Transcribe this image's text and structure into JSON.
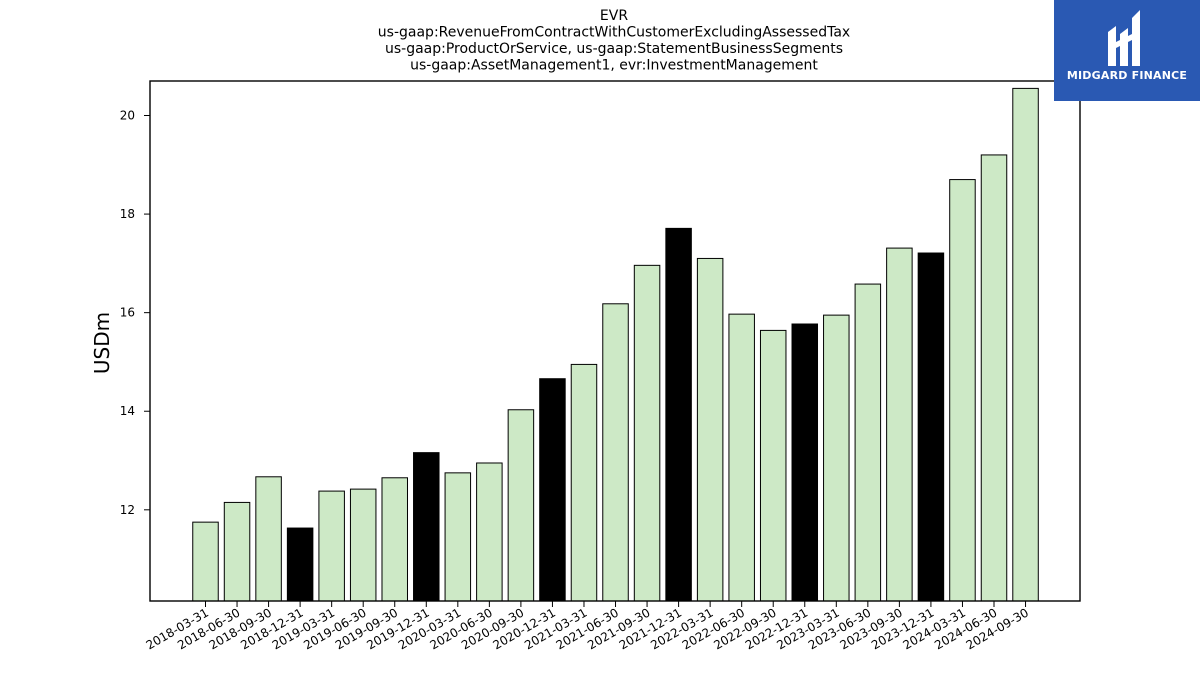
{
  "logo": {
    "text": "MIDGARD FINANCE",
    "background": "#2a59b3"
  },
  "chart_data": {
    "type": "bar",
    "title": [
      "EVR",
      "us-gaap:RevenueFromContractWithCustomerExcludingAssessedTax",
      "us-gaap:ProductOrService, us-gaap:StatementBusinessSegments",
      "us-gaap:AssetManagement1, evr:InvestmentManagement"
    ],
    "xlabel": "",
    "ylabel": "USDm",
    "ylim": [
      10.15,
      20.7
    ],
    "yticks": [
      12,
      14,
      16,
      18,
      20
    ],
    "grid": false,
    "colors": {
      "quarter": "#cde9c6",
      "year_end": "#000000",
      "edge": "#000000"
    },
    "categories": [
      "2018-03-31",
      "2018-06-30",
      "2018-09-30",
      "2018-12-31",
      "2019-03-31",
      "2019-06-30",
      "2019-09-30",
      "2019-12-31",
      "2020-03-31",
      "2020-06-30",
      "2020-09-30",
      "2020-12-31",
      "2021-03-31",
      "2021-06-30",
      "2021-09-30",
      "2021-12-31",
      "2022-03-31",
      "2022-06-30",
      "2022-09-30",
      "2022-12-31",
      "2023-03-31",
      "2023-06-30",
      "2023-09-30",
      "2023-12-31",
      "2024-03-31",
      "2024-06-30",
      "2024-09-30"
    ],
    "values": [
      11.75,
      12.15,
      12.67,
      11.63,
      12.38,
      12.42,
      12.65,
      13.16,
      12.75,
      12.95,
      14.03,
      14.66,
      14.95,
      16.18,
      16.96,
      17.71,
      17.1,
      15.97,
      15.64,
      15.77,
      15.95,
      16.58,
      17.31,
      17.21,
      18.7,
      19.2,
      20.55
    ],
    "year_end": [
      false,
      false,
      false,
      true,
      false,
      false,
      false,
      true,
      false,
      false,
      false,
      true,
      false,
      false,
      false,
      true,
      false,
      false,
      false,
      true,
      false,
      false,
      false,
      true,
      false,
      false,
      false
    ]
  }
}
